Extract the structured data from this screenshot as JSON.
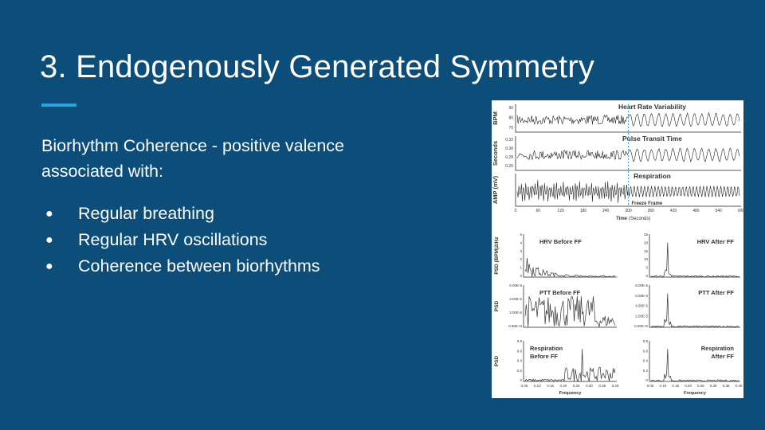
{
  "slide": {
    "title": "3. Endogenously Generated Symmetry",
    "accent_color": "#26a3e2",
    "background_color": "#0c4d7a",
    "intro": "Biorhythm Coherence - positive valence associated with:",
    "bullets": [
      "Regular breathing",
      "Regular HRV oscillations",
      "Coherence between biorhythms"
    ]
  },
  "figure": {
    "top_panels": [
      {
        "title": "Heart Rate Variability",
        "ylabel": "BPM",
        "yticks": [
          "90",
          "80",
          "70"
        ]
      },
      {
        "title": "Pulse Transit Time",
        "ylabel": "Seconds",
        "yticks": [
          "0.32",
          "0.30",
          "0.28",
          "0.26"
        ]
      },
      {
        "title": "Respiration",
        "ylabel": "AMP (mV)",
        "yticks": []
      }
    ],
    "freeze_frame_label": "Freeze Frame",
    "freeze_frame_color": "#4aa3df",
    "time_ticks": [
      "0",
      "60",
      "120",
      "180",
      "240",
      "300",
      "360",
      "420",
      "480",
      "540",
      "600"
    ],
    "time_label_bold": "Time",
    "time_label_unit": "(Seconds)",
    "psd_rows": [
      {
        "ylabel": "PSD",
        "ylabel_unit": "(BPM)2/Hz",
        "left_title": "HRV Before FF",
        "right_title": "HRV After FF",
        "left_yticks": [
          "5",
          "4",
          "3",
          "2",
          "1",
          "0"
        ],
        "right_yticks": [
          "25",
          "20",
          "15",
          "10",
          "5",
          "0"
        ]
      },
      {
        "ylabel": "PSD",
        "ylabel_unit": "",
        "left_title": "PTT Before FF",
        "right_title": "PTT After FF",
        "left_yticks": [
          "6.00E-6",
          "4.00E-6",
          "2.00E-6",
          "0.00E+0"
        ],
        "right_yticks": [
          "8.00E-5",
          "6.00E-5",
          "4.00E-5",
          "2.00E-5",
          "0.00E+0"
        ]
      },
      {
        "ylabel": "PSD",
        "ylabel_unit": "",
        "left_title": "Respiration\nBefore FF",
        "right_title": "Respiration\nAfter FF",
        "left_yticks": [
          "0.8",
          "0.6",
          "0.4",
          "0.2",
          "0"
        ],
        "right_yticks": [
          "0.8",
          "0.6",
          "0.4",
          "0.2",
          "0"
        ]
      }
    ],
    "freq_ticks": [
      "0.05",
      "0.10",
      "0.15",
      "0.20",
      "0.25",
      "0.30",
      "0.35",
      "0.40"
    ],
    "freq_label": "Frequency"
  }
}
